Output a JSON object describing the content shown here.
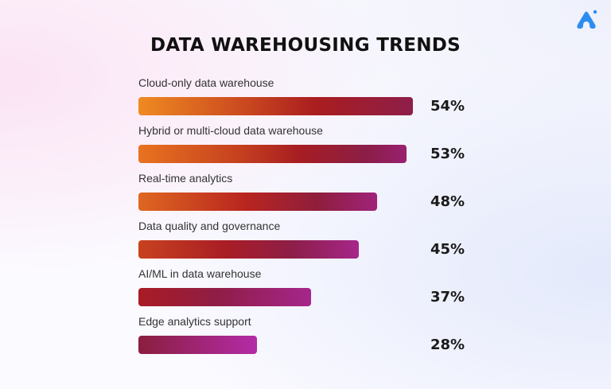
{
  "logo": {
    "name": "brand-logo",
    "color": "#2d8cf0"
  },
  "chart_data": {
    "type": "bar",
    "orientation": "horizontal",
    "title": "DATA WAREHOUSING TRENDS",
    "categories": [
      "Cloud-only data warehouse",
      "Hybrid or multi-cloud data warehouse",
      "Real-time analytics",
      "Data quality and governance",
      "AI/ML in data warehouse",
      "Edge analytics support"
    ],
    "values": [
      54,
      53,
      48,
      45,
      37,
      28
    ],
    "value_labels": [
      "54%",
      "53%",
      "48%",
      "45%",
      "37%",
      "28%"
    ],
    "unit": "%",
    "grid": false,
    "legend": "none"
  }
}
